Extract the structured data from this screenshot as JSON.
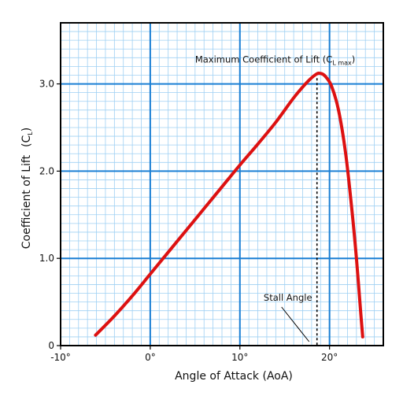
{
  "chart_data": {
    "type": "line",
    "xlabel": "Angle of Attack (AoA)",
    "ylabel": "Coefficient of Lift",
    "ylabel_symbol": "C",
    "ylabel_symbol_sub": "L",
    "xlim": [
      -10,
      26
    ],
    "ylim": [
      0,
      3.7
    ],
    "x_ticks": [
      -10,
      0,
      10,
      20
    ],
    "x_tick_labels": [
      "-10°",
      "0°",
      "10°",
      "20°"
    ],
    "y_ticks": [
      0,
      1,
      2,
      3
    ],
    "y_tick_labels": [
      "0",
      "1.0",
      "2.0",
      "3.0"
    ],
    "grid": true,
    "grid_major_x": 10,
    "grid_major_y": 1,
    "grid_minor_x": 1,
    "grid_minor_y": 0.1,
    "colors": {
      "curve": "#dd1111",
      "major_grid": "#1a7fd4",
      "minor_grid": "#9fd0f3",
      "frame": "#000000"
    },
    "series": [
      {
        "x": [
          -6.1,
          -4,
          -2,
          0,
          2,
          4,
          6,
          8,
          10,
          12,
          14,
          16,
          17.5,
          18.5,
          19.0,
          19.5,
          20.2,
          21.0,
          21.8,
          22.5,
          23.0,
          23.5,
          23.7
        ],
        "y": [
          0.12,
          0.34,
          0.57,
          0.82,
          1.07,
          1.32,
          1.57,
          1.82,
          2.07,
          2.31,
          2.56,
          2.84,
          3.02,
          3.11,
          3.12,
          3.09,
          2.98,
          2.7,
          2.2,
          1.55,
          1.0,
          0.35,
          0.1
        ]
      }
    ],
    "annotations": [
      {
        "name": "cl-max-label",
        "text": "Maximum Coefficient of Lift (C",
        "sub": "L max",
        "close": ")",
        "x": 19.0,
        "y": 3.12
      },
      {
        "name": "stall-angle-label",
        "text": "Stall Angle",
        "x": 18.6,
        "y": 0
      }
    ],
    "stall_angle": 18.6,
    "cl_max": 3.12
  }
}
